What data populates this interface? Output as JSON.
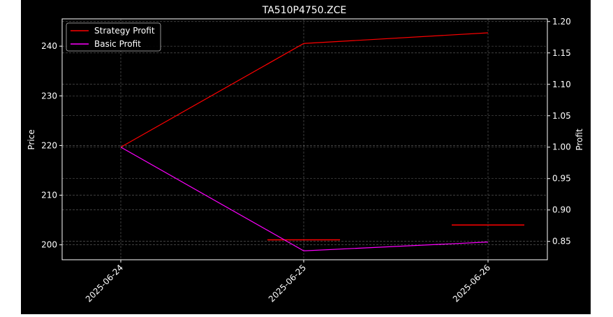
{
  "chart_data": {
    "type": "line",
    "title": "TA510P4750.ZCE",
    "xlabel": "",
    "ylabel_left": "Price",
    "ylabel_right": "Profit",
    "x": [
      "2025-06-24",
      "2025-06-25",
      "2025-06-26"
    ],
    "ylim_left": [
      197,
      245.5
    ],
    "ylim_right": [
      0.8208,
      1.2042
    ],
    "yticks_left": [
      200,
      210,
      220,
      230,
      240
    ],
    "yticks_right": [
      0.85,
      0.9,
      0.95,
      1.0,
      1.05,
      1.1,
      1.15,
      1.2
    ],
    "ytick_labels_left": [
      "200",
      "210",
      "220",
      "230",
      "240"
    ],
    "ytick_labels_right": [
      "0.85",
      "0.90",
      "0.95",
      "1.00",
      "1.05",
      "1.10",
      "1.15",
      "1.20"
    ],
    "grid": true,
    "legend_position": "upper-left",
    "series": [
      {
        "name": "Strategy Profit",
        "axis": "right",
        "color": "#ff0000",
        "values": [
          1.0,
          1.165,
          1.182
        ]
      },
      {
        "name": "Basic Profit",
        "axis": "right",
        "color": "#ff00ff",
        "values": [
          1.0,
          0.835,
          0.849
        ]
      }
    ],
    "price_bars": {
      "axis": "left",
      "color": "#ff0000",
      "items": [
        {
          "x": "2025-06-25",
          "value": 201.0
        },
        {
          "x": "2025-06-26",
          "value": 204.0
        }
      ]
    }
  }
}
